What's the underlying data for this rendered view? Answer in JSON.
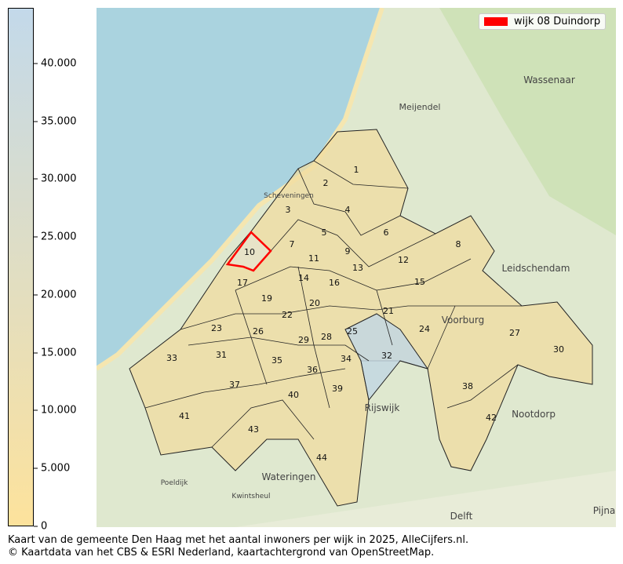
{
  "colorbar": {
    "ticks": [
      "0",
      "5.000",
      "10.000",
      "15.000",
      "20.000",
      "25.000",
      "30.000",
      "35.000",
      "40.000"
    ],
    "tick_values": [
      0,
      5000,
      10000,
      15000,
      20000,
      25000,
      30000,
      35000,
      40000
    ],
    "max": 44800,
    "color_low": "#fde29c",
    "color_high": "#c3d9ea"
  },
  "legend": {
    "label": "wijk 08 Duindorp",
    "color": "#ff0000"
  },
  "map": {
    "sea_color": "#aad3df",
    "district_labels": [
      "1",
      "2",
      "3",
      "4",
      "5",
      "6",
      "7",
      "8",
      "9",
      "10",
      "11",
      "12",
      "13",
      "14",
      "15",
      "16",
      "17",
      "19",
      "20",
      "21",
      "22",
      "23",
      "24",
      "25",
      "26",
      "27",
      "28",
      "29",
      "30",
      "31",
      "32",
      "33",
      "34",
      "35",
      "36",
      "37",
      "38",
      "39",
      "40",
      "41",
      "42",
      "43",
      "44"
    ],
    "place_names": [
      "Wassenaar",
      "Leidschendam",
      "Voorburg",
      "Rijswijk",
      "Nootdorp",
      "Wateringen",
      "Delft",
      "Poeldijk",
      "Kwintsheul",
      "Scheveningen",
      "Meijendel",
      "Pijna"
    ]
  },
  "caption": {
    "line1": "Kaart van de gemeente Den Haag met het aantal inwoners per wijk in 2025, AlleCijfers.nl.",
    "line2": "© Kaartdata van het CBS & ESRI Nederland, kaartachtergrond van OpenStreetMap."
  }
}
